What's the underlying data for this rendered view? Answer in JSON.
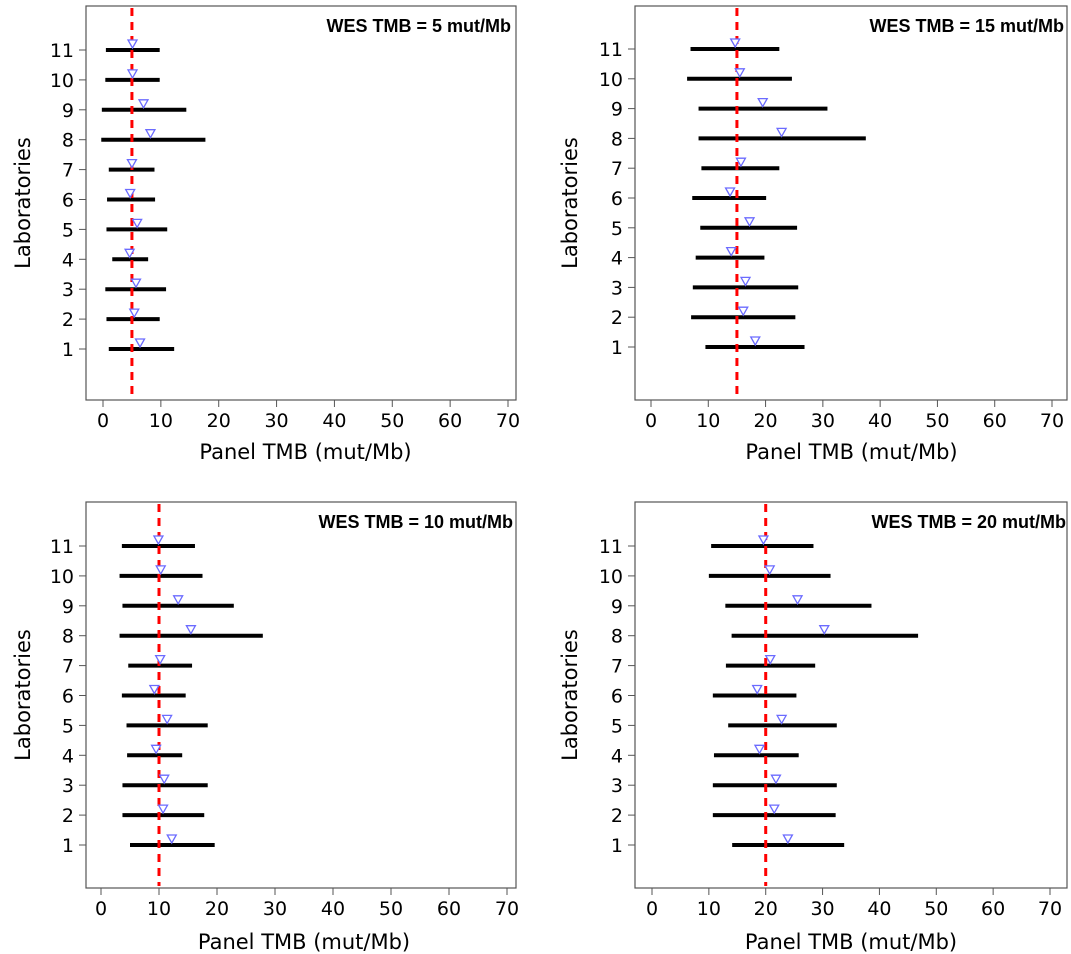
{
  "colors": {
    "interval": "#000000",
    "median_marker": "#6b6bff",
    "reference_line": "#ff0000",
    "frame": "#555555"
  },
  "icons": {
    "median_marker": "triangle-down-outline"
  },
  "chart_data": [
    {
      "type": "scatter",
      "subtype": "interval-plot",
      "title": "WES TMB = 5 mut/Mb",
      "xlabel": "Panel TMB (mut/Mb)",
      "ylabel": "Laboratories",
      "xlim": [
        0,
        70
      ],
      "xticks": [
        0,
        10,
        20,
        30,
        40,
        50,
        60,
        70
      ],
      "ylim": [
        0,
        12
      ],
      "yticks": [
        1,
        2,
        3,
        4,
        5,
        6,
        7,
        8,
        9,
        10,
        11
      ],
      "reference_value": 5,
      "reference_style": "dashed",
      "grid": false,
      "series": [
        {
          "lab": 1,
          "low": 1.0,
          "high": 12.3,
          "median": 6.4
        },
        {
          "lab": 2,
          "low": 0.6,
          "high": 9.8,
          "median": 5.4
        },
        {
          "lab": 3,
          "low": 0.4,
          "high": 10.9,
          "median": 5.7
        },
        {
          "lab": 4,
          "low": 1.6,
          "high": 7.8,
          "median": 4.6
        },
        {
          "lab": 5,
          "low": 0.6,
          "high": 11.1,
          "median": 5.9
        },
        {
          "lab": 6,
          "low": 0.7,
          "high": 9.0,
          "median": 4.7
        },
        {
          "lab": 7,
          "low": 1.0,
          "high": 8.9,
          "median": 5.0
        },
        {
          "lab": 8,
          "low": -0.3,
          "high": 17.7,
          "median": 8.2
        },
        {
          "lab": 9,
          "low": -0.2,
          "high": 14.4,
          "median": 7.0
        },
        {
          "lab": 10,
          "low": 0.4,
          "high": 9.8,
          "median": 5.1
        },
        {
          "lab": 11,
          "low": 0.5,
          "high": 9.8,
          "median": 5.1
        }
      ]
    },
    {
      "type": "scatter",
      "subtype": "interval-plot",
      "title": "WES TMB = 15 mut/Mb",
      "xlabel": "Panel TMB (mut/Mb)",
      "ylabel": "Laboratories",
      "xlim": [
        0,
        70
      ],
      "xticks": [
        0,
        10,
        20,
        30,
        40,
        50,
        60,
        70
      ],
      "ylim": [
        0,
        12
      ],
      "yticks": [
        1,
        2,
        3,
        4,
        5,
        6,
        7,
        8,
        9,
        10,
        11
      ],
      "reference_value": 15,
      "reference_style": "dashed",
      "grid": false,
      "series": [
        {
          "lab": 1,
          "low": 9.5,
          "high": 26.8,
          "median": 18.2
        },
        {
          "lab": 2,
          "low": 7.0,
          "high": 25.2,
          "median": 16.1
        },
        {
          "lab": 3,
          "low": 7.3,
          "high": 25.7,
          "median": 16.5
        },
        {
          "lab": 4,
          "low": 7.8,
          "high": 19.8,
          "median": 14.0
        },
        {
          "lab": 5,
          "low": 8.6,
          "high": 25.5,
          "median": 17.2
        },
        {
          "lab": 6,
          "low": 7.2,
          "high": 20.1,
          "median": 13.8
        },
        {
          "lab": 7,
          "low": 8.8,
          "high": 22.4,
          "median": 15.7
        },
        {
          "lab": 8,
          "low": 8.3,
          "high": 37.5,
          "median": 22.8
        },
        {
          "lab": 9,
          "low": 8.3,
          "high": 30.8,
          "median": 19.5
        },
        {
          "lab": 10,
          "low": 6.3,
          "high": 24.6,
          "median": 15.5
        },
        {
          "lab": 11,
          "low": 6.9,
          "high": 22.4,
          "median": 14.7
        }
      ]
    },
    {
      "type": "scatter",
      "subtype": "interval-plot",
      "title": "WES TMB = 10 mut/Mb",
      "xlabel": "Panel TMB (mut/Mb)",
      "ylabel": "Laboratories",
      "xlim": [
        0,
        70
      ],
      "xticks": [
        0,
        10,
        20,
        30,
        40,
        50,
        60,
        70
      ],
      "ylim": [
        0,
        12
      ],
      "yticks": [
        1,
        2,
        3,
        4,
        5,
        6,
        7,
        8,
        9,
        10,
        11
      ],
      "reference_value": 10,
      "reference_style": "dashed",
      "grid": false,
      "series": [
        {
          "lab": 1,
          "low": 5.0,
          "high": 19.6,
          "median": 12.2
        },
        {
          "lab": 2,
          "low": 3.7,
          "high": 17.8,
          "median": 10.7
        },
        {
          "lab": 3,
          "low": 3.7,
          "high": 18.4,
          "median": 10.9
        },
        {
          "lab": 4,
          "low": 4.5,
          "high": 14.0,
          "median": 9.5
        },
        {
          "lab": 5,
          "low": 4.4,
          "high": 18.4,
          "median": 11.4
        },
        {
          "lab": 6,
          "low": 3.6,
          "high": 14.6,
          "median": 9.2
        },
        {
          "lab": 7,
          "low": 4.7,
          "high": 15.7,
          "median": 10.2
        },
        {
          "lab": 8,
          "low": 3.2,
          "high": 27.9,
          "median": 15.5
        },
        {
          "lab": 9,
          "low": 3.7,
          "high": 22.9,
          "median": 13.3
        },
        {
          "lab": 10,
          "low": 3.2,
          "high": 17.5,
          "median": 10.3
        },
        {
          "lab": 11,
          "low": 3.6,
          "high": 16.2,
          "median": 9.9
        }
      ]
    },
    {
      "type": "scatter",
      "subtype": "interval-plot",
      "title": "WES TMB = 20 mut/Mb",
      "xlabel": "Panel TMB (mut/Mb)",
      "ylabel": "Laboratories",
      "xlim": [
        0,
        70
      ],
      "xticks": [
        0,
        10,
        20,
        30,
        40,
        50,
        60,
        70
      ],
      "ylim": [
        0,
        12
      ],
      "yticks": [
        1,
        2,
        3,
        4,
        5,
        6,
        7,
        8,
        9,
        10,
        11
      ],
      "reference_value": 20,
      "reference_style": "dashed",
      "grid": false,
      "series": [
        {
          "lab": 1,
          "low": 14.1,
          "high": 33.8,
          "median": 23.9
        },
        {
          "lab": 2,
          "low": 10.7,
          "high": 32.3,
          "median": 21.5
        },
        {
          "lab": 3,
          "low": 10.7,
          "high": 32.5,
          "median": 21.8
        },
        {
          "lab": 4,
          "low": 10.9,
          "high": 25.8,
          "median": 18.9
        },
        {
          "lab": 5,
          "low": 13.4,
          "high": 32.5,
          "median": 22.8
        },
        {
          "lab": 6,
          "low": 10.7,
          "high": 25.4,
          "median": 18.5
        },
        {
          "lab": 7,
          "low": 13.0,
          "high": 28.7,
          "median": 20.8
        },
        {
          "lab": 8,
          "low": 14.0,
          "high": 46.8,
          "median": 30.3
        },
        {
          "lab": 9,
          "low": 12.9,
          "high": 38.6,
          "median": 25.6
        },
        {
          "lab": 10,
          "low": 10.0,
          "high": 31.4,
          "median": 20.7
        },
        {
          "lab": 11,
          "low": 10.4,
          "high": 28.4,
          "median": 19.6
        }
      ]
    }
  ]
}
